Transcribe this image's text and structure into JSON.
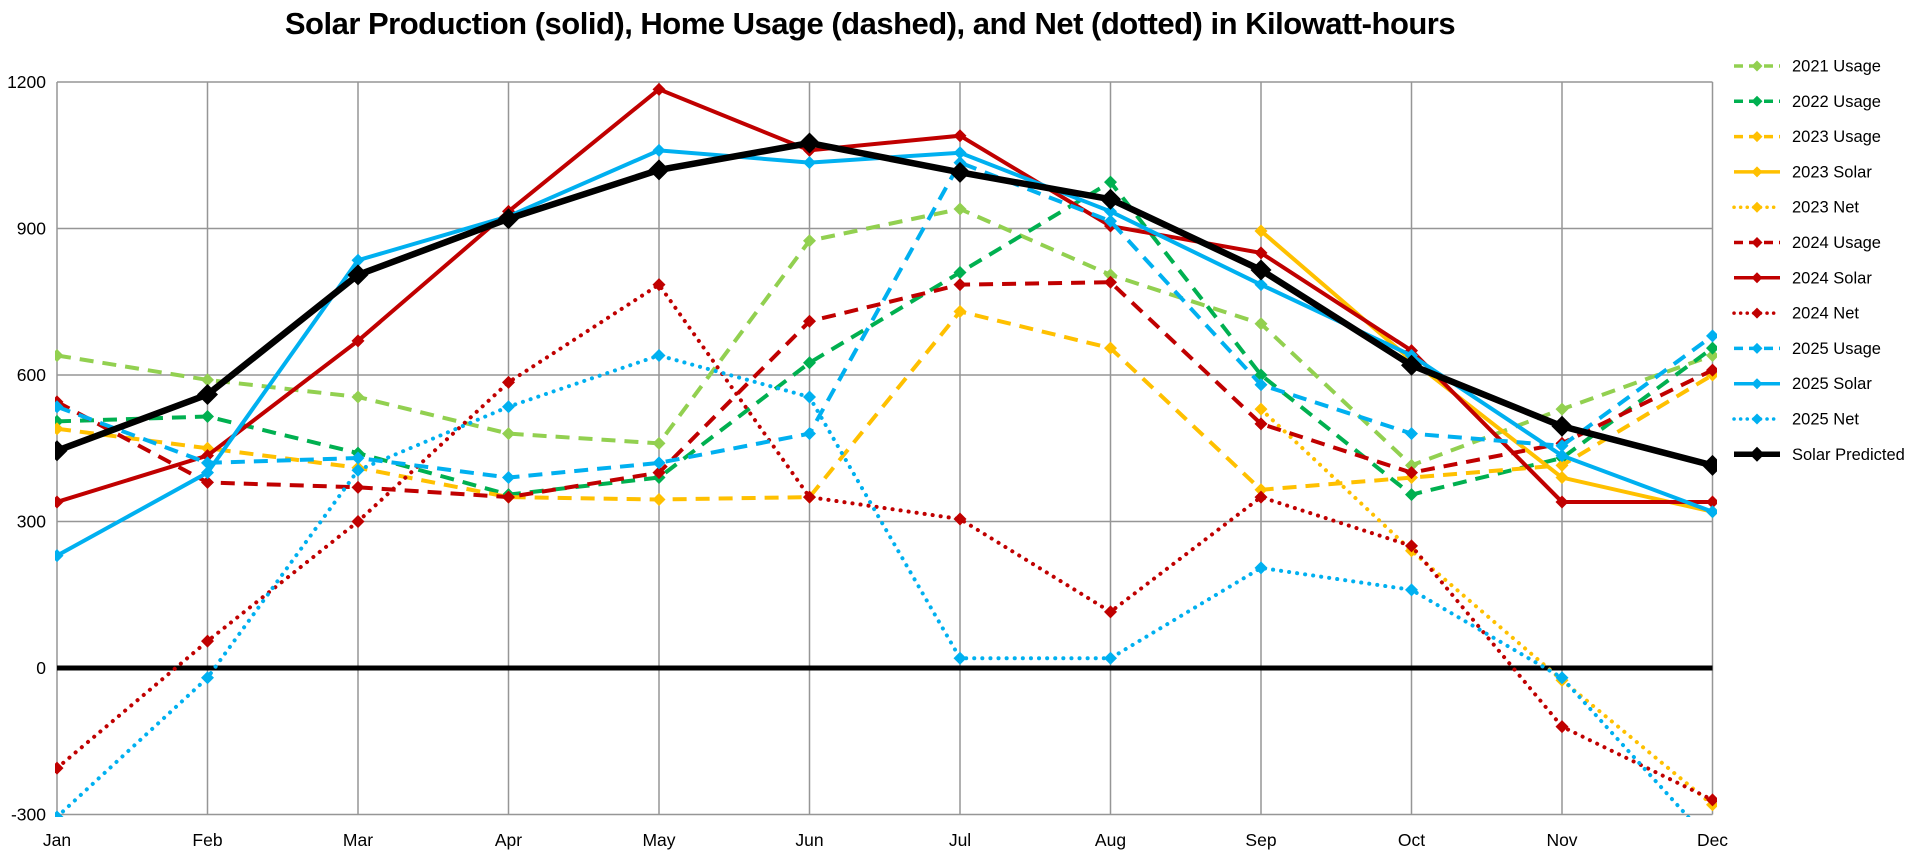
{
  "title": "Solar Production (solid), Home Usage (dashed), and Net (dotted) in Kilowatt-hours",
  "colors": {
    "green_2021": "#92D050",
    "green_2022": "#00B050",
    "gold_2023": "#FFC000",
    "red_2024": "#C00000",
    "blue_2025": "#00B0F0",
    "predicted": "#000000",
    "gridline": "#969696",
    "axis_text": "#000000"
  },
  "chart_data": {
    "type": "line",
    "title": "Solar Production (solid), Home Usage (dashed), and Net (dotted) in Kilowatt-hours",
    "categories": [
      "Jan",
      "Feb",
      "Mar",
      "Apr",
      "May",
      "Jun",
      "Jul",
      "Aug",
      "Sep",
      "Oct",
      "Nov",
      "Dec"
    ],
    "y_ticks": [
      1200,
      900,
      600,
      300,
      0,
      -300
    ],
    "ylim": [
      -300,
      1200
    ],
    "grid": true,
    "legend_position": "right",
    "units": "kilowatt-hours",
    "series": [
      {
        "name": "2021 Usage",
        "style": "dashed",
        "color": "#92D050",
        "values": [
          640,
          590,
          555,
          480,
          460,
          875,
          940,
          805,
          705,
          415,
          530,
          640
        ]
      },
      {
        "name": "2022 Usage",
        "style": "dashed",
        "color": "#00B050",
        "values": [
          505,
          515,
          440,
          355,
          390,
          625,
          810,
          995,
          600,
          355,
          430,
          655
        ]
      },
      {
        "name": "2023 Usage",
        "style": "dashed",
        "color": "#FFC000",
        "values": [
          490,
          450,
          410,
          350,
          345,
          350,
          730,
          655,
          365,
          390,
          415,
          600
        ]
      },
      {
        "name": "2023 Solar",
        "style": "solid",
        "color": "#FFC000",
        "values": [
          null,
          null,
          null,
          null,
          null,
          null,
          null,
          null,
          895,
          630,
          390,
          320
        ]
      },
      {
        "name": "2023 Net",
        "style": "dotted",
        "color": "#FFC000",
        "values": [
          null,
          null,
          null,
          null,
          null,
          null,
          null,
          null,
          530,
          240,
          -25,
          -280
        ]
      },
      {
        "name": "2024 Usage",
        "style": "dashed",
        "color": "#C00000",
        "values": [
          545,
          380,
          370,
          350,
          400,
          710,
          785,
          790,
          500,
          400,
          460,
          610
        ]
      },
      {
        "name": "2024 Solar",
        "style": "solid",
        "color": "#C00000",
        "values": [
          340,
          435,
          670,
          935,
          1185,
          1060,
          1090,
          905,
          850,
          650,
          340,
          340
        ]
      },
      {
        "name": "2024 Net",
        "style": "dotted",
        "color": "#C00000",
        "values": [
          -205,
          55,
          300,
          585,
          785,
          350,
          305,
          115,
          350,
          250,
          -120,
          -270
        ]
      },
      {
        "name": "2025 Usage",
        "style": "dashed",
        "color": "#00B0F0",
        "values": [
          535,
          420,
          430,
          390,
          420,
          480,
          1035,
          915,
          580,
          480,
          455,
          680
        ]
      },
      {
        "name": "2025 Solar",
        "style": "solid",
        "color": "#00B0F0",
        "values": [
          230,
          400,
          835,
          925,
          1060,
          1035,
          1055,
          935,
          785,
          640,
          435,
          320
        ]
      },
      {
        "name": "2025 Net",
        "style": "dotted",
        "color": "#00B0F0",
        "values": [
          -305,
          -20,
          405,
          535,
          640,
          555,
          20,
          20,
          205,
          160,
          -20,
          -360
        ]
      },
      {
        "name": "Solar Predicted",
        "style": "solid-thick",
        "color": "#000000",
        "values": [
          445,
          560,
          805,
          920,
          1020,
          1075,
          1015,
          960,
          815,
          620,
          495,
          415
        ]
      }
    ]
  }
}
